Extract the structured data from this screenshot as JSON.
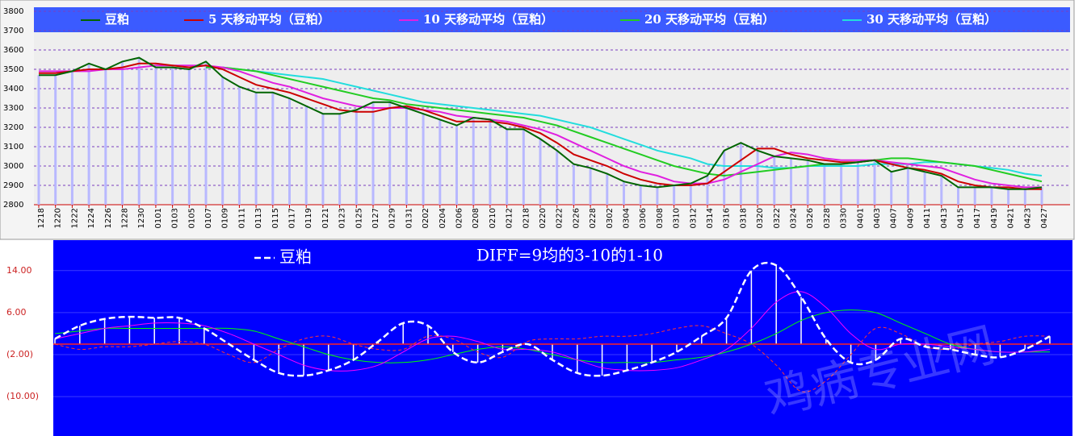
{
  "chart_data": [
    {
      "type": "line",
      "categories": [
        "1218",
        "1220",
        "1222",
        "1224",
        "1226",
        "1228",
        "1230",
        "0101",
        "0103",
        "0105",
        "0107",
        "0109",
        "0111",
        "0113",
        "0115",
        "0117",
        "0119",
        "0121",
        "0123",
        "0125",
        "0127",
        "0129",
        "0131",
        "0202",
        "0204",
        "0206",
        "0208",
        "0210",
        "0212",
        "0218",
        "0220",
        "0222",
        "0226",
        "0228",
        "0302",
        "0304",
        "0306",
        "0308",
        "0310",
        "0312",
        "0314",
        "0316",
        "0318",
        "0320",
        "0322",
        "0324",
        "0326",
        "0328",
        "0330",
        "0401",
        "0403",
        "0407",
        "0409",
        "0411",
        "0413",
        "0415",
        "0417",
        "0419",
        "0421",
        "0423",
        "0427"
      ],
      "series": [
        {
          "name": "豆粕",
          "color": "#006400",
          "values": [
            3470,
            3470,
            3490,
            3530,
            3500,
            3540,
            3560,
            3510,
            3510,
            3500,
            3540,
            3460,
            3410,
            3380,
            3380,
            3350,
            3310,
            3270,
            3270,
            3290,
            3330,
            3330,
            3300,
            3270,
            3240,
            3210,
            3250,
            3240,
            3190,
            3190,
            3140,
            3080,
            3010,
            2990,
            2960,
            2920,
            2900,
            2890,
            2900,
            2910,
            2950,
            3080,
            3120,
            3080,
            3050,
            3040,
            3030,
            3010,
            3010,
            3020,
            3030,
            2970,
            2990,
            2970,
            2950,
            2890,
            2890,
            2890,
            2880,
            2880,
            2890
          ]
        },
        {
          "name": "5 天移动平均（豆粕）",
          "color": "#cc0000",
          "values": [
            3480,
            3480,
            3490,
            3500,
            3500,
            3510,
            3530,
            3530,
            3520,
            3510,
            3520,
            3500,
            3460,
            3420,
            3400,
            3380,
            3350,
            3320,
            3290,
            3280,
            3280,
            3300,
            3310,
            3290,
            3260,
            3230,
            3230,
            3230,
            3220,
            3200,
            3170,
            3120,
            3060,
            3030,
            3000,
            2960,
            2930,
            2910,
            2900,
            2900,
            2910,
            2970,
            3030,
            3090,
            3090,
            3060,
            3040,
            3030,
            3020,
            3020,
            3030,
            3010,
            2990,
            2980,
            2960,
            2920,
            2900,
            2890,
            2890,
            2880,
            2880
          ]
        },
        {
          "name": "10 天移动平均（豆粕）",
          "color": "#e020e0",
          "values": [
            3490,
            3490,
            3490,
            3490,
            3500,
            3500,
            3510,
            3520,
            3520,
            3520,
            3520,
            3510,
            3490,
            3460,
            3430,
            3410,
            3380,
            3350,
            3330,
            3310,
            3300,
            3300,
            3300,
            3290,
            3280,
            3260,
            3250,
            3240,
            3230,
            3210,
            3190,
            3160,
            3120,
            3080,
            3040,
            3000,
            2970,
            2950,
            2920,
            2910,
            2910,
            2930,
            2970,
            3010,
            3050,
            3070,
            3060,
            3040,
            3030,
            3030,
            3030,
            3020,
            3010,
            3000,
            2990,
            2960,
            2930,
            2910,
            2900,
            2890,
            2890
          ]
        },
        {
          "name": "20 天移动平均（豆粕）",
          "color": "#22cc22",
          "values": [
            null,
            null,
            null,
            null,
            null,
            null,
            null,
            null,
            null,
            null,
            3510,
            3510,
            3500,
            3490,
            3470,
            3450,
            3430,
            3410,
            3390,
            3370,
            3350,
            3340,
            3320,
            3310,
            3300,
            3290,
            3280,
            3270,
            3260,
            3250,
            3230,
            3210,
            3180,
            3150,
            3120,
            3090,
            3060,
            3030,
            3000,
            2980,
            2960,
            2950,
            2960,
            2970,
            2980,
            2990,
            3000,
            3010,
            3010,
            3020,
            3030,
            3040,
            3040,
            3030,
            3020,
            3010,
            3000,
            2980,
            2960,
            2940,
            2920
          ]
        },
        {
          "name": "30 天移动平均（豆粕）",
          "color": "#22dddd",
          "values": [
            null,
            null,
            null,
            null,
            null,
            null,
            null,
            null,
            null,
            null,
            3510,
            3510,
            3500,
            3490,
            3480,
            3470,
            3460,
            3450,
            3430,
            3410,
            3390,
            3370,
            3350,
            3330,
            3320,
            3310,
            3300,
            3290,
            3280,
            3270,
            3260,
            3240,
            3220,
            3200,
            3170,
            3140,
            3110,
            3080,
            3060,
            3040,
            3010,
            3000,
            3000,
            3000,
            2990,
            2990,
            3000,
            3000,
            3000,
            3000,
            3010,
            3010,
            3010,
            3020,
            3020,
            3010,
            3000,
            2990,
            2980,
            2960,
            2950
          ]
        }
      ],
      "bars_color": "#b8b8ff",
      "ylim": [
        2800,
        3800
      ],
      "yticks": [
        2800,
        2900,
        3000,
        3100,
        3200,
        3300,
        3400,
        3500,
        3600,
        3700,
        3800
      ],
      "grid": true
    },
    {
      "type": "line",
      "title": "DIFF=9均的3-10的1-10",
      "series": [
        {
          "name": "豆粕",
          "color": "#ffffff",
          "dashed": true,
          "values": [
            1,
            3.5,
            4.8,
            5.2,
            5,
            5,
            3,
            0,
            -3,
            -5.5,
            -6,
            -5,
            -3,
            0.5,
            4,
            3.5,
            -1.5,
            -3.5,
            -1.5,
            0,
            -3,
            -5.5,
            -6,
            -5,
            -3.5,
            -1.5,
            1.5,
            5,
            14,
            15,
            9,
            1,
            -3.5,
            -3,
            1,
            -0.5,
            -1,
            -2,
            -2.5,
            -1,
            1.5
          ]
        },
        {
          "color": "#ff3333",
          "dashed": true,
          "values": [
            0,
            -1,
            -0.5,
            -0.5,
            0,
            0.5,
            0,
            -2,
            -3.5,
            -1,
            1,
            1.5,
            0,
            -1,
            -1,
            1.5,
            1,
            -1.5,
            -2.5,
            0.5,
            1,
            1,
            1.5,
            1.5,
            2,
            3,
            3.5,
            2,
            0,
            -4,
            -9,
            -7,
            -2,
            3,
            2,
            -0.5,
            -1,
            0,
            0.5,
            1.5,
            1.5
          ]
        },
        {
          "color": "#ff00ff",
          "values": [
            1,
            2,
            3,
            3.5,
            4,
            4,
            3.5,
            2,
            0,
            -2,
            -4,
            -5,
            -5,
            -4,
            -1.5,
            1,
            1.5,
            0.5,
            -1,
            -1,
            -1.5,
            -3,
            -4.5,
            -5,
            -5,
            -4.5,
            -3,
            -1,
            3,
            8,
            10,
            7,
            2,
            -1,
            0,
            0,
            -0.5,
            -1,
            -1.5,
            -1.5,
            -1
          ]
        },
        {
          "color": "#00ff00",
          "values": [
            2,
            2.5,
            3,
            3,
            3,
            3,
            3,
            3,
            2.5,
            1,
            -0.5,
            -2,
            -3,
            -3.5,
            -3.5,
            -3,
            -2,
            -1,
            -0.5,
            -1,
            -2,
            -3,
            -3.5,
            -3.5,
            -3.5,
            -3,
            -2.5,
            -1.5,
            0,
            2,
            4.5,
            6,
            6.5,
            6,
            4,
            2,
            0,
            -1,
            -1.5,
            -1.5,
            -1.5
          ]
        }
      ],
      "background": "#0000ff",
      "ylim": [
        -17.5,
        19.8
      ],
      "yticks": [
        {
          "value": 14,
          "label": "14.00"
        },
        {
          "value": 6,
          "label": "6.00"
        },
        {
          "value": -2,
          "label": "(2.00)"
        },
        {
          "value": -10,
          "label": "(10.00)"
        }
      ]
    }
  ],
  "watermark": "鸡病专业网"
}
